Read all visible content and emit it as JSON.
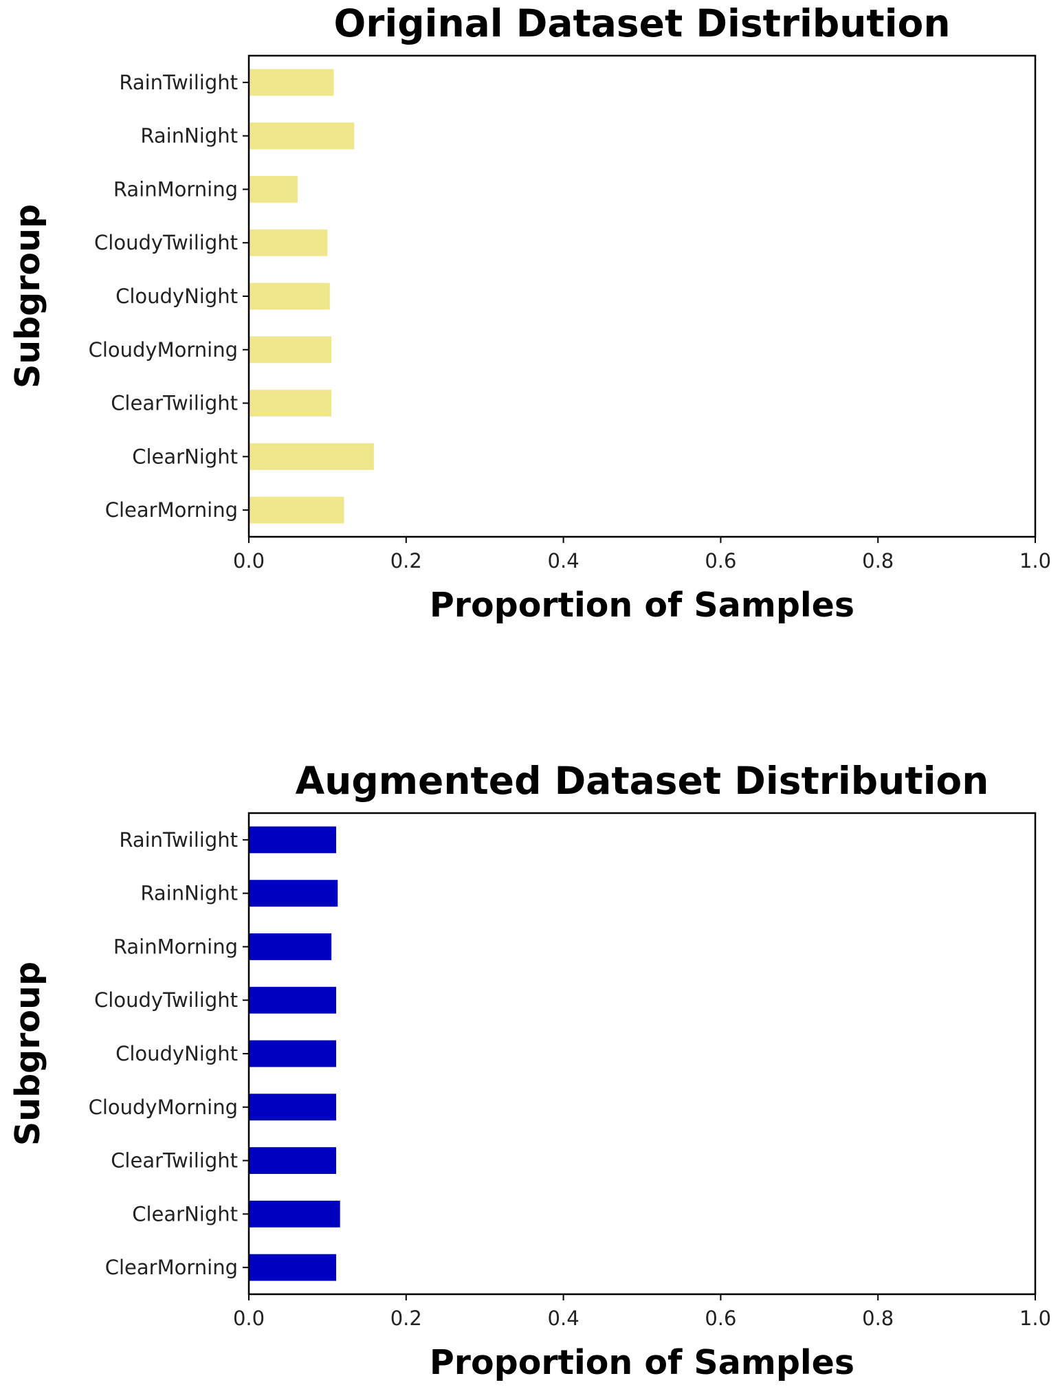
{
  "chart_data": [
    {
      "type": "bar",
      "orientation": "horizontal",
      "title": "Original Dataset Distribution",
      "xlabel": "Proportion of Samples",
      "ylabel": "Subgroup",
      "xlim": [
        0,
        1
      ],
      "xticks": [
        "0.0",
        "0.2",
        "0.4",
        "0.6",
        "0.8",
        "1.0"
      ],
      "grid": false,
      "bar_color": "#F0E68C",
      "categories": [
        "RainTwilight",
        "RainNight",
        "RainMorning",
        "CloudyTwilight",
        "CloudyNight",
        "CloudyMorning",
        "ClearTwilight",
        "ClearNight",
        "ClearMorning"
      ],
      "values": [
        0.108,
        0.134,
        0.062,
        0.1,
        0.103,
        0.105,
        0.105,
        0.159,
        0.121
      ]
    },
    {
      "type": "bar",
      "orientation": "horizontal",
      "title": "Augmented Dataset Distribution",
      "xlabel": "Proportion of Samples",
      "ylabel": "Subgroup",
      "xlim": [
        0,
        1
      ],
      "xticks": [
        "0.0",
        "0.2",
        "0.4",
        "0.6",
        "0.8",
        "1.0"
      ],
      "grid": false,
      "bar_color": "#0000C0",
      "categories": [
        "RainTwilight",
        "RainNight",
        "RainMorning",
        "CloudyTwilight",
        "CloudyNight",
        "CloudyMorning",
        "ClearTwilight",
        "ClearNight",
        "ClearMorning"
      ],
      "values": [
        0.111,
        0.113,
        0.105,
        0.111,
        0.111,
        0.111,
        0.111,
        0.116,
        0.111
      ]
    }
  ]
}
